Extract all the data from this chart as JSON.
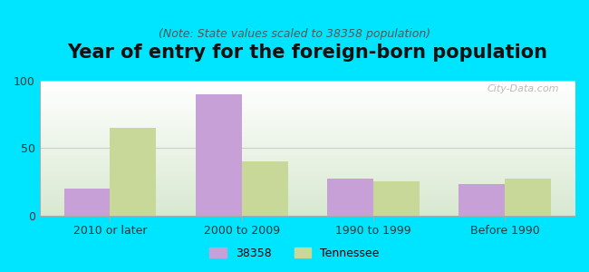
{
  "title": "Year of entry for the foreign-born population",
  "subtitle": "(Note: State values scaled to 38358 population)",
  "categories": [
    "2010 or later",
    "2000 to 2009",
    "1990 to 1999",
    "Before 1990"
  ],
  "values_38358": [
    20,
    90,
    27,
    23
  ],
  "values_tennessee": [
    65,
    40,
    25,
    27
  ],
  "color_38358": "#c8a0d8",
  "color_tennessee": "#c8d898",
  "background_outer": "#00e5ff",
  "ylim": [
    0,
    100
  ],
  "yticks": [
    0,
    50,
    100
  ],
  "bar_width": 0.35,
  "legend_label_38358": "38358",
  "legend_label_tennessee": "Tennessee",
  "title_fontsize": 15,
  "subtitle_fontsize": 9,
  "axis_fontsize": 9,
  "legend_fontsize": 9
}
